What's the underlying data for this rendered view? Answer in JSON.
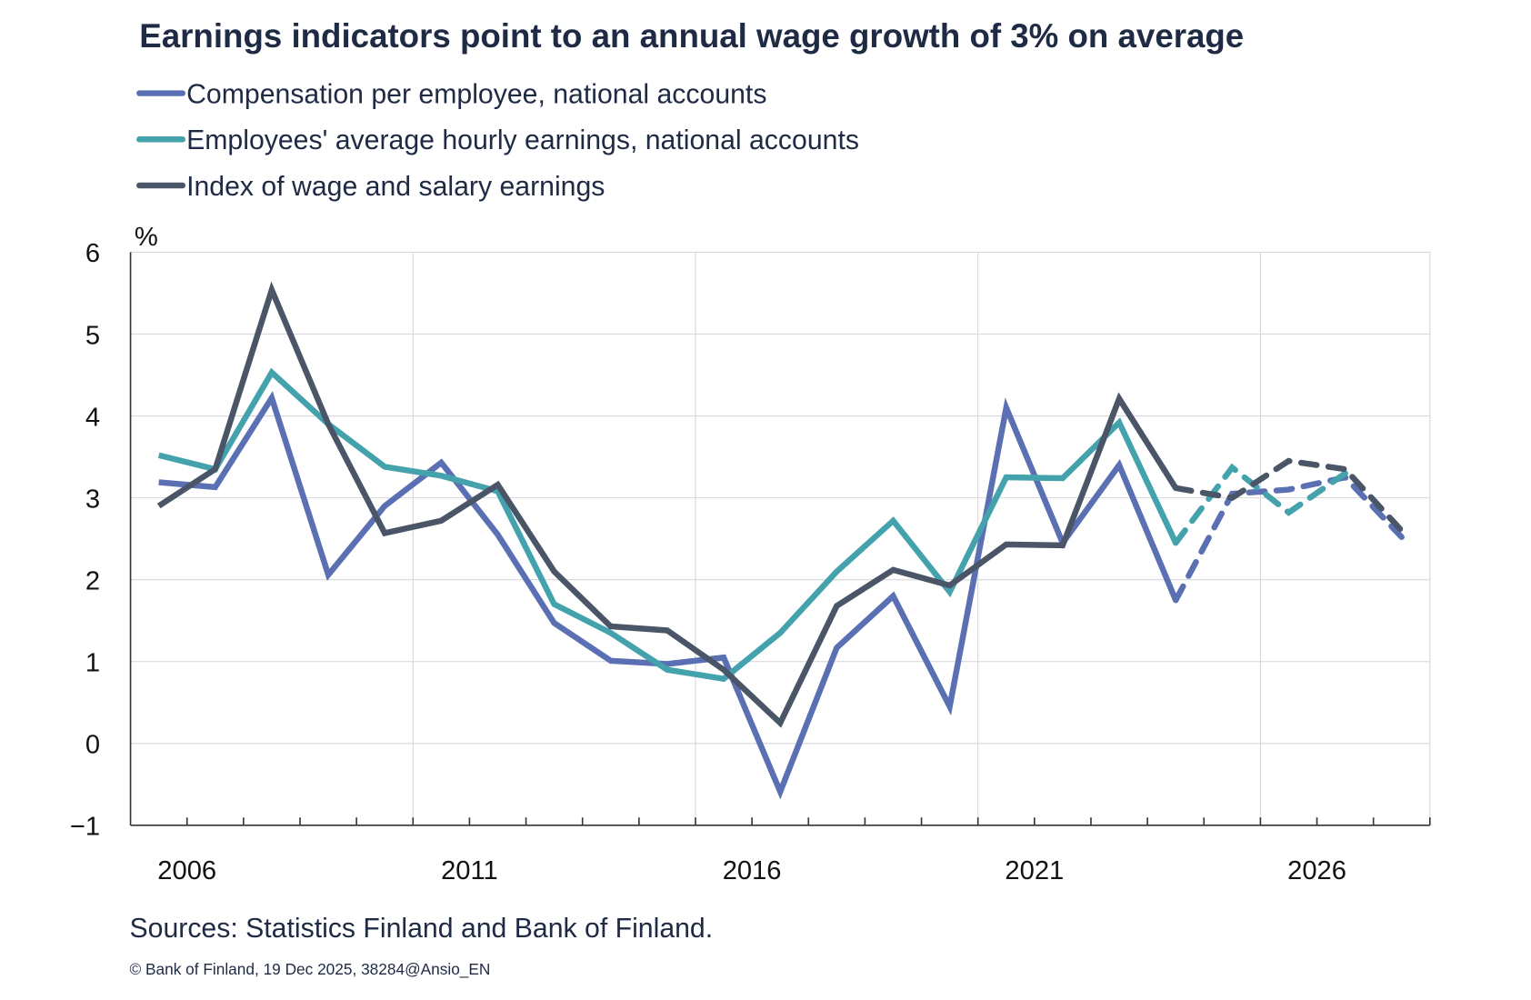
{
  "chart_data": {
    "type": "line",
    "title": "Earnings indicators point to an annual wage growth of 3% on average",
    "ylabel": "%",
    "ylim": [
      -1,
      6
    ],
    "yticks": [
      "6",
      "5",
      "4",
      "3",
      "2",
      "1",
      "0",
      "−1"
    ],
    "x": [
      2006,
      2007,
      2008,
      2009,
      2010,
      2011,
      2012,
      2013,
      2014,
      2015,
      2016,
      2017,
      2018,
      2019,
      2020,
      2021,
      2022,
      2023,
      2024,
      2025,
      2026,
      2027,
      2028
    ],
    "xtick_labels": [
      "2006",
      "2011",
      "2016",
      "2021",
      "2026"
    ],
    "forecast_from": 2024,
    "grid": true,
    "legend_position": "top-left",
    "series": [
      {
        "name": "Compensation per employee, national accounts",
        "color": "#5b70b2",
        "values": [
          3.19,
          3.13,
          4.22,
          2.06,
          2.9,
          3.43,
          2.55,
          1.47,
          1.01,
          0.97,
          1.05,
          -0.59,
          1.17,
          1.8,
          0.45,
          4.1,
          2.45,
          3.4,
          1.75,
          3.05,
          3.1,
          3.25,
          2.52
        ]
      },
      {
        "name": "Employees' average hourly earnings, national accounts",
        "color": "#44a2ad",
        "values": [
          3.52,
          3.35,
          4.53,
          3.9,
          3.38,
          3.27,
          3.08,
          1.7,
          1.35,
          0.9,
          0.79,
          1.35,
          2.1,
          2.72,
          1.85,
          3.25,
          3.24,
          3.92,
          2.45,
          3.37,
          2.82,
          3.3,
          null
        ]
      },
      {
        "name": "Index of wage and salary earnings",
        "color": "#4a5568",
        "values": [
          2.9,
          3.35,
          5.54,
          3.9,
          2.57,
          2.72,
          3.16,
          2.1,
          1.43,
          1.38,
          0.9,
          0.25,
          1.68,
          2.12,
          1.93,
          2.43,
          2.42,
          4.21,
          3.12,
          3.0,
          3.45,
          3.35,
          2.6
        ]
      }
    ]
  },
  "footer": {
    "sources": "Sources: Statistics Finland and Bank of Finland.",
    "copyright": "© Bank of Finland,  19 Dec 2025, 38284@Ansio_EN"
  }
}
